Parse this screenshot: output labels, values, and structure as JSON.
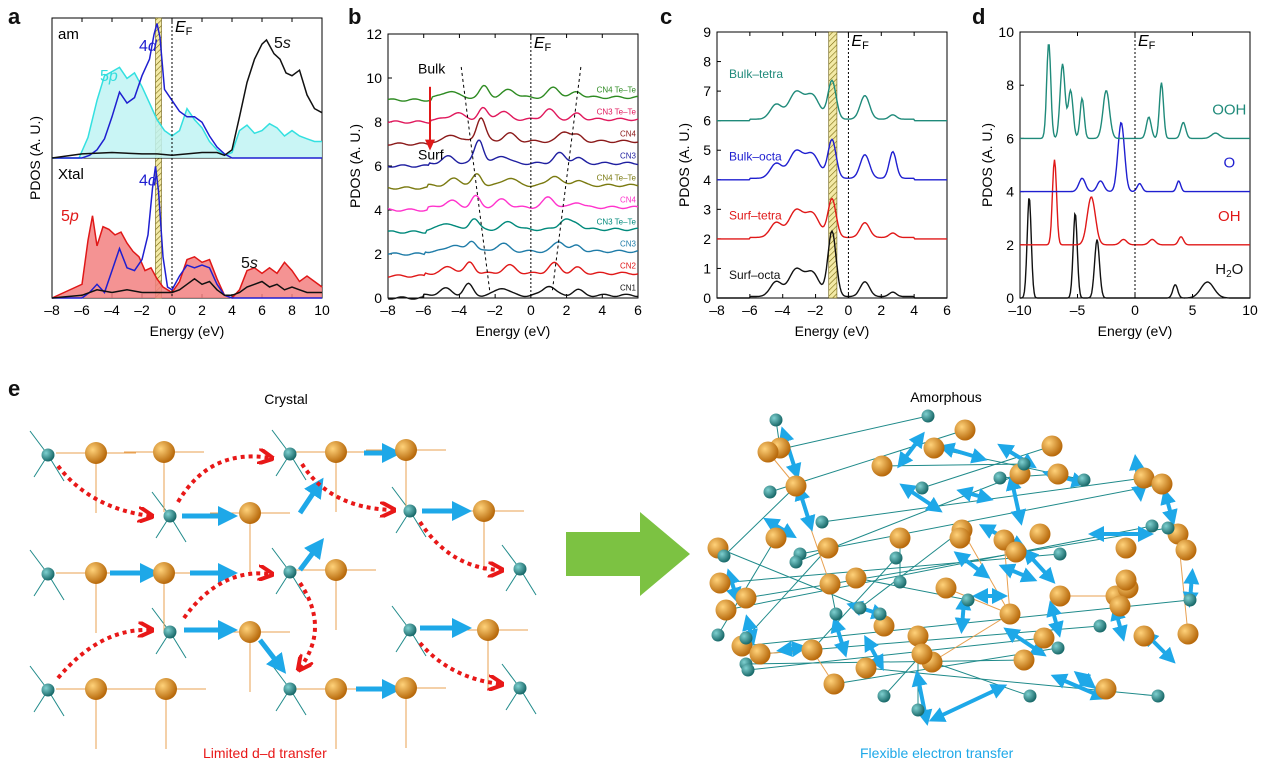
{
  "panels": {
    "a": "a",
    "b": "b",
    "c": "c",
    "d": "d",
    "e": "e"
  },
  "common": {
    "xlabel": "Energy (eV)",
    "ylabel": "PDOS (A. U.)",
    "fermi_label": "E",
    "fermi_sub": "F"
  },
  "chart_data": [
    {
      "id": "a",
      "type": "area",
      "xlabel": "Energy (eV)",
      "ylabel": "PDOS (A. U.)",
      "xlim": [
        -8,
        10
      ],
      "xticks": [
        -8,
        -6,
        -4,
        -2,
        0,
        2,
        4,
        6,
        8,
        10
      ],
      "ylim": [
        0,
        2
      ],
      "highlight_band": [
        -1.1,
        -0.7
      ],
      "fermi": 0,
      "subpanels": [
        {
          "label": "am",
          "offset": 1,
          "orbital_labels": [
            {
              "text": "4",
              "italic": "d",
              "color": "#1f1fd0",
              "x": -2.2,
              "y": 0.78
            },
            {
              "text": "5",
              "italic": "p",
              "color": "#33dddd",
              "x": -4.8,
              "y": 0.56
            },
            {
              "text": "5",
              "italic": "s",
              "color": "#111111",
              "x": 6.8,
              "y": 0.8
            }
          ],
          "series": [
            {
              "name": "5p",
              "color": "#33e0e0",
              "fill": "#bff3f3",
              "x": [
                -8,
                -6.2,
                -5.6,
                -5.0,
                -4.5,
                -4.0,
                -3.5,
                -3.0,
                -2.5,
                -2.0,
                -1.5,
                -1.0,
                -0.5,
                0,
                0.5,
                1.0,
                1.5,
                2.0,
                2.5,
                3.0,
                3.5,
                4.0,
                4.5,
                5.0,
                5.5,
                6.0,
                6.5,
                7.0,
                7.5,
                8.0,
                8.5,
                9.0,
                9.5,
                10
              ],
              "y": [
                0,
                0.0,
                0.15,
                0.42,
                0.6,
                0.63,
                0.66,
                0.58,
                0.62,
                0.52,
                0.4,
                0.28,
                0.2,
                0.16,
                0.2,
                0.36,
                0.28,
                0.22,
                0.12,
                0.06,
                0.02,
                0.04,
                0.2,
                0.24,
                0.18,
                0.2,
                0.25,
                0.22,
                0.16,
                0.2,
                0.16,
                0.14,
                0.12,
                0.12
              ]
            },
            {
              "name": "4d",
              "color": "#1f1fd0",
              "x": [
                -8,
                -6,
                -5.5,
                -5.0,
                -4.5,
                -4.0,
                -3.5,
                -3.0,
                -2.5,
                -2.0,
                -1.5,
                -1.2,
                -1.0,
                -0.8,
                -0.5,
                0,
                0.5,
                1.0,
                1.5,
                2.0,
                2.5,
                3.0,
                3.5,
                4.0,
                5,
                6,
                7,
                8,
                9,
                10
              ],
              "y": [
                0,
                0.0,
                0.02,
                0.06,
                0.14,
                0.3,
                0.48,
                0.4,
                0.44,
                0.6,
                0.72,
                0.9,
                0.98,
                0.88,
                0.5,
                0.42,
                0.34,
                0.3,
                0.3,
                0.26,
                0.16,
                0.08,
                0.03,
                0.0,
                0,
                0,
                0,
                0,
                0,
                0
              ]
            },
            {
              "name": "5s",
              "color": "#111111",
              "x": [
                -8,
                -6,
                -4,
                -2,
                -1,
                0,
                1,
                2,
                3,
                3.5,
                4.0,
                4.5,
                5.0,
                5.5,
                6.0,
                6.3,
                6.8,
                7.2,
                7.6,
                8.0,
                8.5,
                9.0,
                9.5,
                10
              ],
              "y": [
                0,
                0.03,
                0.04,
                0.03,
                0.03,
                0.02,
                0.03,
                0.04,
                0.04,
                0.02,
                0.06,
                0.3,
                0.55,
                0.72,
                0.83,
                0.86,
                0.76,
                0.72,
                0.62,
                0.6,
                0.64,
                0.46,
                0.36,
                0.33
              ]
            }
          ]
        },
        {
          "label": "Xtal",
          "offset": 0,
          "orbital_labels": [
            {
              "text": "4",
              "italic": "d",
              "color": "#1f1fd0",
              "x": -2.2,
              "y": 0.82
            },
            {
              "text": "5",
              "italic": "p",
              "color": "#e01818",
              "x": -7.4,
              "y": 0.56
            },
            {
              "text": "5",
              "italic": "s",
              "color": "#111111",
              "x": 4.6,
              "y": 0.22
            }
          ],
          "series": [
            {
              "name": "5p",
              "color": "#e01818",
              "fill": "#f28080",
              "x": [
                -8,
                -6.0,
                -5.6,
                -5.3,
                -5.0,
                -4.6,
                -4.2,
                -3.8,
                -3.4,
                -3.0,
                -2.6,
                -2.2,
                -1.8,
                -1.4,
                -1.0,
                -0.6,
                0,
                0.5,
                1.0,
                1.5,
                2.0,
                2.5,
                3.0,
                3.5,
                4.0,
                4.5,
                5.0,
                5.5,
                6.0,
                6.5,
                7.0,
                7.5,
                8.0,
                8.5,
                9.0,
                9.5,
                10
              ],
              "y": [
                0,
                0.1,
                0.42,
                0.6,
                0.38,
                0.52,
                0.5,
                0.46,
                0.48,
                0.4,
                0.34,
                0.3,
                0.2,
                0.22,
                0.14,
                0.08,
                0.04,
                0.12,
                0.28,
                0.3,
                0.26,
                0.28,
                0.14,
                0.02,
                0.0,
                0.06,
                0.2,
                0.22,
                0.18,
                0.22,
                0.18,
                0.26,
                0.2,
                0.12,
                0.16,
                0.12,
                0.08
              ]
            },
            {
              "name": "4d",
              "color": "#1f1fd0",
              "x": [
                -8,
                -6,
                -5.5,
                -5,
                -4.5,
                -4,
                -3.5,
                -3,
                -2.5,
                -2,
                -1.6,
                -1.3,
                -1.1,
                -0.9,
                -0.6,
                -0.3,
                0,
                0.5,
                1.0,
                1.5,
                2.0,
                2.5,
                3.0,
                3.5,
                4,
                5,
                6,
                7,
                8,
                9,
                10
              ],
              "y": [
                0,
                0.0,
                0.04,
                0.1,
                0.04,
                0.2,
                0.36,
                0.22,
                0.2,
                0.28,
                0.46,
                0.8,
                0.96,
                0.78,
                0.3,
                0.08,
                0.06,
                0.16,
                0.24,
                0.22,
                0.24,
                0.22,
                0.1,
                0.02,
                0.0,
                0,
                0,
                0,
                0,
                0,
                0
              ]
            },
            {
              "name": "5s",
              "color": "#111111",
              "x": [
                -8,
                -6,
                -5,
                -4,
                -3,
                -2,
                -1,
                0,
                0.5,
                1.0,
                1.5,
                2.0,
                2.5,
                3.0,
                3.5,
                4.0,
                4.5,
                5.0,
                5.5,
                6.0,
                6.5,
                7.0,
                7.5,
                8.0,
                8.5,
                9.0,
                9.5,
                10
              ],
              "y": [
                0,
                0.02,
                0.06,
                0.04,
                0.06,
                0.04,
                0.04,
                0.04,
                0.06,
                0.1,
                0.14,
                0.1,
                0.12,
                0.06,
                0.02,
                0.02,
                0.04,
                0.08,
                0.1,
                0.12,
                0.08,
                0.1,
                0.06,
                0.08,
                0.06,
                0.04,
                0.04,
                0.04
              ]
            }
          ]
        }
      ]
    },
    {
      "id": "b",
      "type": "line",
      "xlabel": "Energy (eV)",
      "ylabel": "PDOS (A. U.)",
      "xlim": [
        -8,
        6
      ],
      "xticks": [
        -8,
        -6,
        -4,
        -2,
        0,
        2,
        4,
        6
      ],
      "ylim": [
        0,
        12
      ],
      "yticks": [
        0,
        2,
        4,
        6,
        8,
        10,
        12
      ],
      "fermi": 0,
      "annotations": {
        "bulk": "Bulk",
        "surf": "Surf"
      },
      "series": [
        {
          "name": "CN1",
          "color": "#111111",
          "offset": 0
        },
        {
          "name": "CN2",
          "color": "#e01818",
          "offset": 1
        },
        {
          "name": "CN3",
          "color": "#1f7ca8",
          "offset": 2
        },
        {
          "name": "CN3 Te–Te",
          "color": "#00897b",
          "offset": 3
        },
        {
          "name": "CN4",
          "color": "#ff33cc",
          "offset": 4
        },
        {
          "name": "CN4 Te–Te",
          "color": "#7a7a10",
          "offset": 5
        },
        {
          "name": "CN3",
          "color": "#1f1fa0",
          "offset": 6
        },
        {
          "name": "CN4",
          "color": "#8b1a1a",
          "offset": 7
        },
        {
          "name": "CN3 Te–Te",
          "color": "#e0185c",
          "offset": 8
        },
        {
          "name": "CN4 Te–Te",
          "color": "#2e8b22",
          "offset": 9
        }
      ]
    },
    {
      "id": "c",
      "type": "line",
      "xlabel": "Energy (eV)",
      "ylabel": "PDOS (A. U.)",
      "xlim": [
        -8,
        6
      ],
      "xticks": [
        -8,
        -6,
        -4,
        -2,
        0,
        2,
        4,
        6
      ],
      "ylim": [
        0,
        9
      ],
      "yticks": [
        0,
        1,
        2,
        3,
        4,
        5,
        6,
        7,
        8,
        9
      ],
      "fermi": 0,
      "highlight_band": [
        -1.2,
        -0.7
      ],
      "series": [
        {
          "name": "Surf–octa",
          "color": "#111111",
          "offset": 0
        },
        {
          "name": "Surf–tetra",
          "color": "#e01818",
          "offset": 2
        },
        {
          "name": "Bulk–octa",
          "color": "#1f1fd0",
          "offset": 4
        },
        {
          "name": "Bulk–tetra",
          "color": "#1f8a7a",
          "offset": 6
        }
      ]
    },
    {
      "id": "d",
      "type": "line",
      "xlabel": "Energy (eV)",
      "ylabel": "PDOS (A. U.)",
      "xlim": [
        -10,
        10
      ],
      "xticks": [
        -10,
        -5,
        0,
        5,
        10
      ],
      "ylim": [
        0,
        10
      ],
      "yticks": [
        0,
        2,
        4,
        6,
        8,
        10
      ],
      "fermi": 0,
      "series": [
        {
          "name": "H",
          "sub": "2",
          "tail": "O",
          "color": "#111111",
          "offset": 0
        },
        {
          "name": "OH",
          "color": "#e01818",
          "offset": 2
        },
        {
          "name": "O",
          "color": "#1f1fd0",
          "offset": 4
        },
        {
          "name": "OOH",
          "color": "#1f8a7a",
          "offset": 6
        }
      ]
    }
  ],
  "schematic": {
    "crystal_title": "Crystal",
    "amorphous_title": "Amorphous",
    "crystal_caption": "Limited d–d transfer",
    "amorphous_caption": "Flexible electron transfer",
    "colors": {
      "orange": "#d98a1c",
      "teal": "#1f8a8a",
      "blue_arrow": "#1ea8e8",
      "red_arrow": "#e81818",
      "green_arrow": "#7cc242"
    }
  }
}
